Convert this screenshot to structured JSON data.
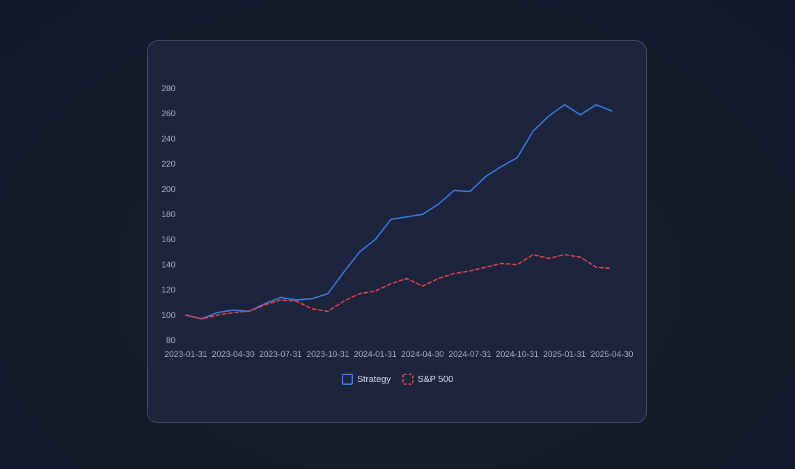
{
  "chart_data": {
    "type": "line",
    "x": [
      "2023-01-31",
      "2023-02-28",
      "2023-03-31",
      "2023-04-30",
      "2023-05-31",
      "2023-06-30",
      "2023-07-31",
      "2023-08-31",
      "2023-09-30",
      "2023-10-31",
      "2023-11-30",
      "2023-12-31",
      "2024-01-31",
      "2024-02-29",
      "2024-03-31",
      "2024-04-30",
      "2024-05-31",
      "2024-06-30",
      "2024-07-31",
      "2024-08-31",
      "2024-09-30",
      "2024-10-31",
      "2024-11-30",
      "2024-12-31",
      "2025-01-31",
      "2025-02-28",
      "2025-03-31",
      "2025-04-30"
    ],
    "xticks": [
      "2023-01-31",
      "2023-04-30",
      "2023-07-31",
      "2023-10-31",
      "2024-01-31",
      "2024-04-30",
      "2024-07-31",
      "2024-10-31",
      "2025-01-31",
      "2025-04-30"
    ],
    "yticks": [
      80,
      100,
      120,
      140,
      160,
      180,
      200,
      220,
      240,
      260,
      280
    ],
    "ylim": [
      80,
      280
    ],
    "series": [
      {
        "name": "Strategy",
        "color": "#3d7be0",
        "dash": "solid",
        "values": [
          100,
          97,
          102,
          104,
          103,
          109,
          114,
          112,
          113,
          117,
          134,
          150,
          160,
          176,
          178,
          180,
          188,
          199,
          198,
          210,
          218,
          225,
          246,
          258,
          267,
          259,
          267,
          262
        ]
      },
      {
        "name": "S&P 500",
        "color": "#e0454f",
        "dash": "dashed",
        "values": [
          100,
          97,
          100,
          102,
          103,
          108,
          112,
          111,
          105,
          103,
          111,
          117,
          119,
          125,
          129,
          123,
          129,
          133,
          135,
          138,
          141,
          140,
          148,
          145,
          148,
          146,
          138,
          137
        ]
      }
    ],
    "title": "",
    "xlabel": "",
    "ylabel": "",
    "grid": false,
    "legend_position": "bottom"
  }
}
